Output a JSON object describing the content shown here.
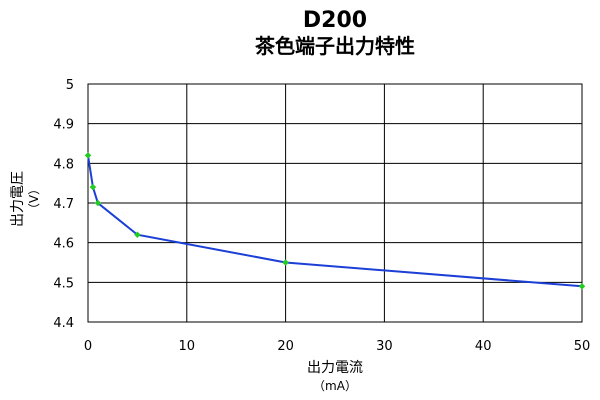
{
  "chart_data": {
    "type": "line",
    "title": "D200",
    "subtitle": "茶色端子出力特性",
    "xlabel": "出力電流",
    "xunit": "（mA）",
    "ylabel": "出力電圧",
    "yunit": "（V）",
    "xlim": [
      0,
      50
    ],
    "ylim": [
      4.4,
      5.0
    ],
    "xticks": [
      0,
      10,
      20,
      30,
      40,
      50
    ],
    "yticks": [
      4.4,
      4.5,
      4.6,
      4.7,
      4.8,
      4.9,
      5.0
    ],
    "xtick_labels": [
      "0",
      "10",
      "20",
      "30",
      "40",
      "50"
    ],
    "ytick_labels": [
      "4.4",
      "4.5",
      "4.6",
      "4.7",
      "4.8",
      "4.9",
      "5"
    ],
    "grid": true,
    "legend": "none",
    "series": [
      {
        "x": [
          0,
          0.5,
          1,
          5,
          20,
          50
        ],
        "y": [
          4.82,
          4.74,
          4.7,
          4.62,
          4.55,
          4.49
        ],
        "line_color": "#1c3fd6",
        "marker_color": "#22cc22"
      }
    ]
  }
}
